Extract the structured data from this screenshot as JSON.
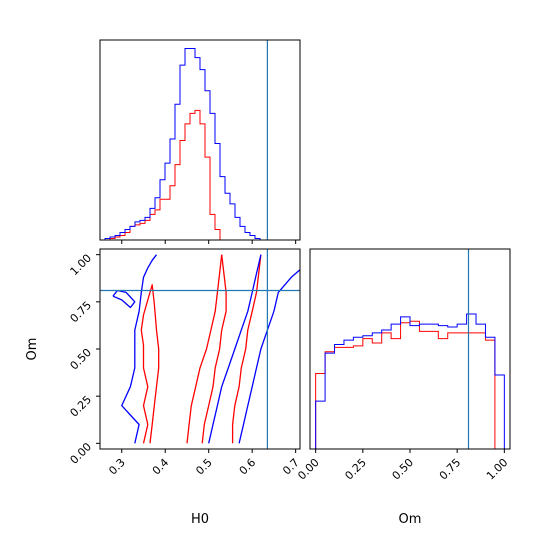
{
  "colors": {
    "series_a": "#ff0000",
    "series_b": "#0000ff",
    "truth": "#1f77b4"
  },
  "chart_data": {
    "type": "corner",
    "parameters": [
      "H0",
      "Om"
    ],
    "truths": {
      "H0": 0.635,
      "Om": 0.81
    },
    "xlabels": {
      "H0": "H0",
      "Om": "Om"
    },
    "ylabels": {
      "Om": "Om"
    },
    "ranges": {
      "H0": [
        0.25,
        0.71
      ],
      "Om": [
        -0.03,
        1.03
      ]
    },
    "ticks": {
      "H0": [
        "0.3",
        "0.4",
        "0.5",
        "0.6",
        "0.7"
      ],
      "Om": [
        "0.00",
        "0.25",
        "0.50",
        "0.75",
        "1.00"
      ]
    },
    "hist_H0": {
      "edges": [
        0.25,
        0.2615,
        0.273,
        0.2845,
        0.296,
        0.3075,
        0.319,
        0.3305,
        0.342,
        0.3535,
        0.365,
        0.3765,
        0.388,
        0.3995,
        0.411,
        0.4225,
        0.434,
        0.4455,
        0.457,
        0.4685,
        0.48,
        0.4915,
        0.503,
        0.5145,
        0.526,
        0.5375,
        0.549,
        0.5605,
        0.572,
        0.5835,
        0.595,
        0.6065,
        0.618,
        0.6295,
        0.641,
        0.6525,
        0.664,
        0.6755,
        0.687,
        0.6985,
        0.71
      ],
      "series": [
        {
          "color": "red",
          "counts": [
            0,
            0,
            1,
            2,
            3,
            5,
            9,
            10,
            11,
            13,
            17,
            20,
            27,
            27,
            36,
            50,
            66,
            77,
            84,
            86,
            77,
            55,
            17,
            7,
            0,
            0,
            0,
            0,
            0,
            0,
            0,
            0,
            0,
            0,
            0,
            0,
            0,
            0,
            0,
            0
          ]
        },
        {
          "color": "blue",
          "counts": [
            0,
            1,
            2,
            3,
            5,
            7,
            9,
            12,
            13,
            15,
            21,
            28,
            40,
            51,
            67,
            90,
            116,
            127,
            127,
            121,
            113,
            99,
            84,
            64,
            42,
            31,
            24,
            15,
            9,
            5,
            3,
            1,
            0,
            0,
            0,
            0,
            0,
            0,
            0,
            0
          ]
        }
      ]
    },
    "hist_Om": {
      "edges": [
        0.0,
        0.05,
        0.1,
        0.15,
        0.2,
        0.25,
        0.3,
        0.35,
        0.4,
        0.45,
        0.5,
        0.55,
        0.6,
        0.65,
        0.7,
        0.75,
        0.8,
        0.85,
        0.9,
        0.95,
        1.0
      ],
      "series": [
        {
          "color": "red",
          "counts": [
            52,
            67,
            70,
            70,
            71,
            76,
            73,
            80,
            76,
            87,
            88,
            81,
            81,
            76,
            80,
            80,
            80,
            80,
            75,
            0
          ]
        },
        {
          "color": "blue",
          "counts": [
            33,
            66,
            72,
            75,
            77,
            78,
            80,
            82,
            86,
            91,
            85,
            86,
            86,
            85,
            84,
            86,
            93,
            86,
            77,
            51
          ]
        }
      ]
    },
    "contours": [
      {
        "color": "red",
        "level": "outer-left",
        "points": [
          [
            0.35,
            0.0
          ],
          [
            0.36,
            0.1
          ],
          [
            0.35,
            0.2
          ],
          [
            0.36,
            0.3
          ],
          [
            0.35,
            0.4
          ],
          [
            0.35,
            0.52
          ],
          [
            0.345,
            0.6
          ],
          [
            0.35,
            0.68
          ],
          [
            0.36,
            0.76
          ],
          [
            0.37,
            0.84
          ],
          [
            0.375,
            0.74
          ],
          [
            0.38,
            0.6
          ],
          [
            0.385,
            0.5
          ],
          [
            0.385,
            0.4
          ],
          [
            0.38,
            0.3
          ],
          [
            0.375,
            0.2
          ],
          [
            0.37,
            0.1
          ],
          [
            0.365,
            0.0
          ]
        ]
      },
      {
        "color": "red",
        "level": "inner-left",
        "points": [
          [
            0.45,
            0.0
          ],
          [
            0.455,
            0.1
          ],
          [
            0.46,
            0.2
          ],
          [
            0.47,
            0.3
          ],
          [
            0.48,
            0.4
          ],
          [
            0.495,
            0.5
          ],
          [
            0.505,
            0.6
          ],
          [
            0.515,
            0.7
          ],
          [
            0.52,
            0.8
          ],
          [
            0.525,
            0.9
          ],
          [
            0.53,
            1.0
          ]
        ]
      },
      {
        "color": "red",
        "level": "inner-right",
        "points": [
          [
            0.53,
            1.0
          ],
          [
            0.535,
            0.9
          ],
          [
            0.54,
            0.8
          ],
          [
            0.54,
            0.7
          ],
          [
            0.53,
            0.6
          ],
          [
            0.525,
            0.5
          ],
          [
            0.515,
            0.4
          ],
          [
            0.51,
            0.3
          ],
          [
            0.5,
            0.2
          ],
          [
            0.49,
            0.1
          ],
          [
            0.485,
            0.0
          ]
        ]
      },
      {
        "color": "red",
        "level": "outer-right",
        "points": [
          [
            0.555,
            0.0
          ],
          [
            0.555,
            0.1
          ],
          [
            0.56,
            0.2
          ],
          [
            0.57,
            0.3
          ],
          [
            0.575,
            0.4
          ],
          [
            0.585,
            0.5
          ],
          [
            0.59,
            0.6
          ],
          [
            0.6,
            0.7
          ],
          [
            0.61,
            0.8
          ],
          [
            0.615,
            0.9
          ],
          [
            0.62,
            1.0
          ]
        ]
      },
      {
        "color": "blue",
        "level": "outer-left",
        "points": [
          [
            0.33,
            0.0
          ],
          [
            0.34,
            0.1
          ],
          [
            0.3,
            0.2
          ],
          [
            0.32,
            0.3
          ],
          [
            0.33,
            0.4
          ],
          [
            0.33,
            0.5
          ],
          [
            0.33,
            0.6
          ],
          [
            0.34,
            0.7
          ],
          [
            0.345,
            0.8
          ],
          [
            0.35,
            0.88
          ],
          [
            0.36,
            0.93
          ],
          [
            0.37,
            0.97
          ],
          [
            0.38,
            1.0
          ]
        ]
      },
      {
        "color": "blue",
        "level": "corner-left",
        "points": [
          [
            0.28,
            0.78
          ],
          [
            0.29,
            0.81
          ],
          [
            0.31,
            0.8
          ],
          [
            0.33,
            0.75
          ],
          [
            0.32,
            0.72
          ],
          [
            0.3,
            0.76
          ],
          [
            0.28,
            0.78
          ]
        ]
      },
      {
        "color": "blue",
        "level": "inner-right",
        "points": [
          [
            0.5,
            0.0
          ],
          [
            0.51,
            0.1
          ],
          [
            0.52,
            0.2
          ],
          [
            0.53,
            0.3
          ],
          [
            0.545,
            0.4
          ],
          [
            0.56,
            0.5
          ],
          [
            0.575,
            0.6
          ],
          [
            0.59,
            0.7
          ],
          [
            0.6,
            0.8
          ],
          [
            0.61,
            0.9
          ],
          [
            0.62,
            1.0
          ]
        ]
      },
      {
        "color": "blue",
        "level": "outer-right",
        "points": [
          [
            0.57,
            0.0
          ],
          [
            0.58,
            0.1
          ],
          [
            0.59,
            0.2
          ],
          [
            0.6,
            0.3
          ],
          [
            0.61,
            0.4
          ],
          [
            0.62,
            0.5
          ],
          [
            0.635,
            0.6
          ],
          [
            0.65,
            0.7
          ],
          [
            0.66,
            0.8
          ],
          [
            0.69,
            0.88
          ],
          [
            0.71,
            0.92
          ]
        ]
      }
    ]
  }
}
